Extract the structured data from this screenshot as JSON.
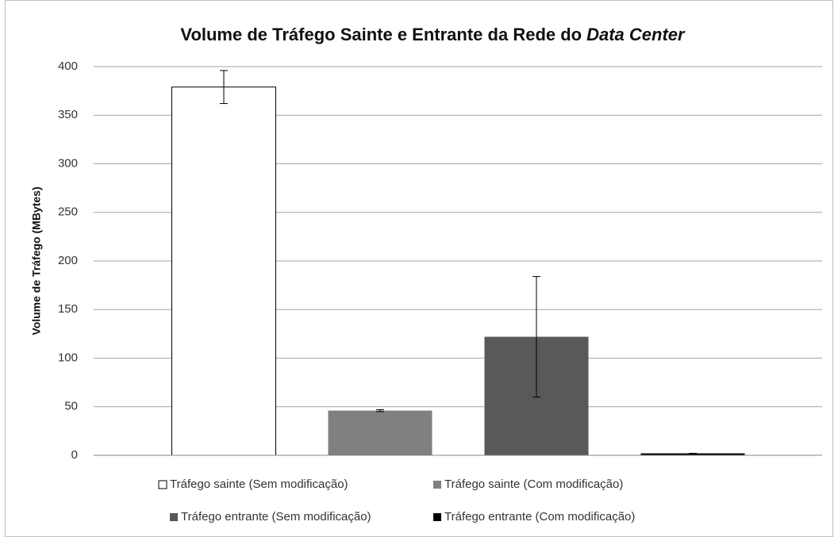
{
  "chart_data": {
    "type": "bar",
    "title": [
      {
        "text": "Volume de Tráfego Sainte e Entrante da Rede do"
      },
      {
        "text": "Data Center",
        "italic": true
      }
    ],
    "y_label": "Volume de Tráfego (MBytes)",
    "ylim": [
      0,
      400
    ],
    "yticks": [
      0,
      50,
      100,
      150,
      200,
      250,
      300,
      350,
      400
    ],
    "grid": true,
    "legend": "bottom",
    "series": [
      {
        "name": "Tráfego sainte (Sem modificação)",
        "color": "#ffffff",
        "edgecolor": "#000000",
        "values": [
          379
        ],
        "errors": [
          17
        ]
      },
      {
        "name": "Tráfego sainte (Com modificação)",
        "color": "#808080",
        "values": [
          46
        ],
        "errors": [
          1
        ]
      },
      {
        "name": "Tráfego entrante (Sem modificação)",
        "color": "#595959",
        "values": [
          122
        ],
        "errors": [
          62
        ]
      },
      {
        "name": "Tráfego entrante (Com modificação)",
        "color": "#000000",
        "values": [
          2
        ],
        "errors": [
          0
        ]
      }
    ]
  }
}
